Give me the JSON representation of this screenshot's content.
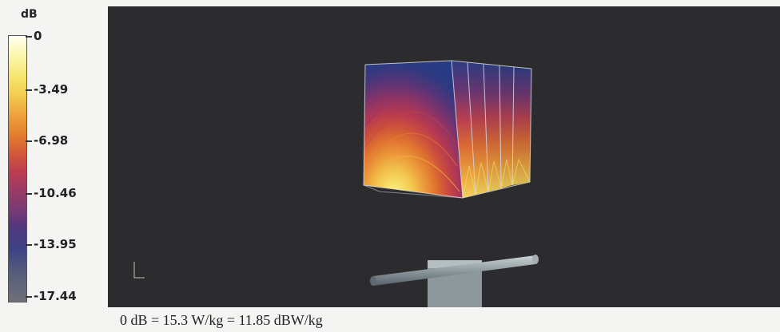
{
  "legend": {
    "unit": "dB",
    "labels": [
      "0",
      "-3.49",
      "-6.98",
      "-10.46",
      "-13.95",
      "-17.44"
    ]
  },
  "caption": "0 dB = 15.3 W/kg = 11.85 dBW/kg",
  "colors": {
    "viewport_background": "#2c2c2e",
    "scale_max": "#fffff2",
    "scale_yellow": "#f6e36a",
    "scale_orange": "#e37f2e",
    "scale_magenta": "#9b3a64",
    "scale_blue": "#3b4285",
    "scale_min": "#6f7178"
  },
  "icons": [
    "axis-triad-icon"
  ]
}
